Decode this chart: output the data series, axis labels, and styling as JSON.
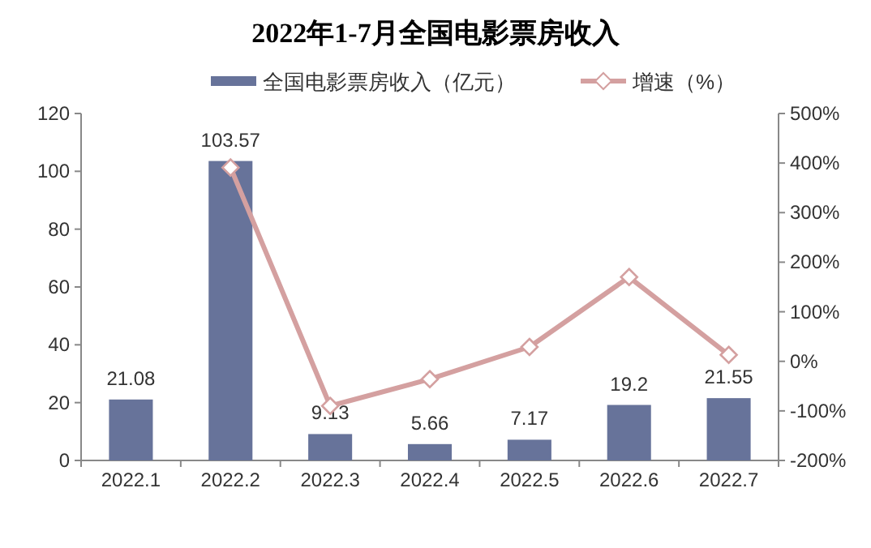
{
  "chart_data": {
    "type": "bar",
    "title": "2022年1-7月全国电影票房收入",
    "categories": [
      "2022.1",
      "2022.2",
      "2022.3",
      "2022.4",
      "2022.5",
      "2022.6",
      "2022.7"
    ],
    "series": [
      {
        "name": "全国电影票房收入（亿元）",
        "color": "#67739a",
        "values": [
          21.08,
          103.57,
          9.13,
          5.66,
          7.17,
          19.2,
          21.55
        ],
        "data_labels": true
      },
      {
        "name": "增速（%）",
        "type": "line",
        "axis": "y2",
        "color": "#d4a0a0",
        "marker": "diamond",
        "values": [
          null,
          391,
          -90,
          -36,
          29,
          170,
          13
        ]
      }
    ],
    "ylim": [
      0,
      120
    ],
    "yticks": [
      0,
      20,
      40,
      60,
      80,
      100,
      120
    ],
    "y2lim": [
      -200,
      500
    ],
    "y2ticks": [
      {
        "value": -200,
        "label": "-200%"
      },
      {
        "value": -100,
        "label": "-100%"
      },
      {
        "value": 0,
        "label": "0%"
      },
      {
        "value": 100,
        "label": "100%"
      },
      {
        "value": 200,
        "label": "200%"
      },
      {
        "value": 300,
        "label": "300%"
      },
      {
        "value": 400,
        "label": "400%"
      },
      {
        "value": 500,
        "label": "500%"
      }
    ],
    "grid": false,
    "legend": "top"
  }
}
